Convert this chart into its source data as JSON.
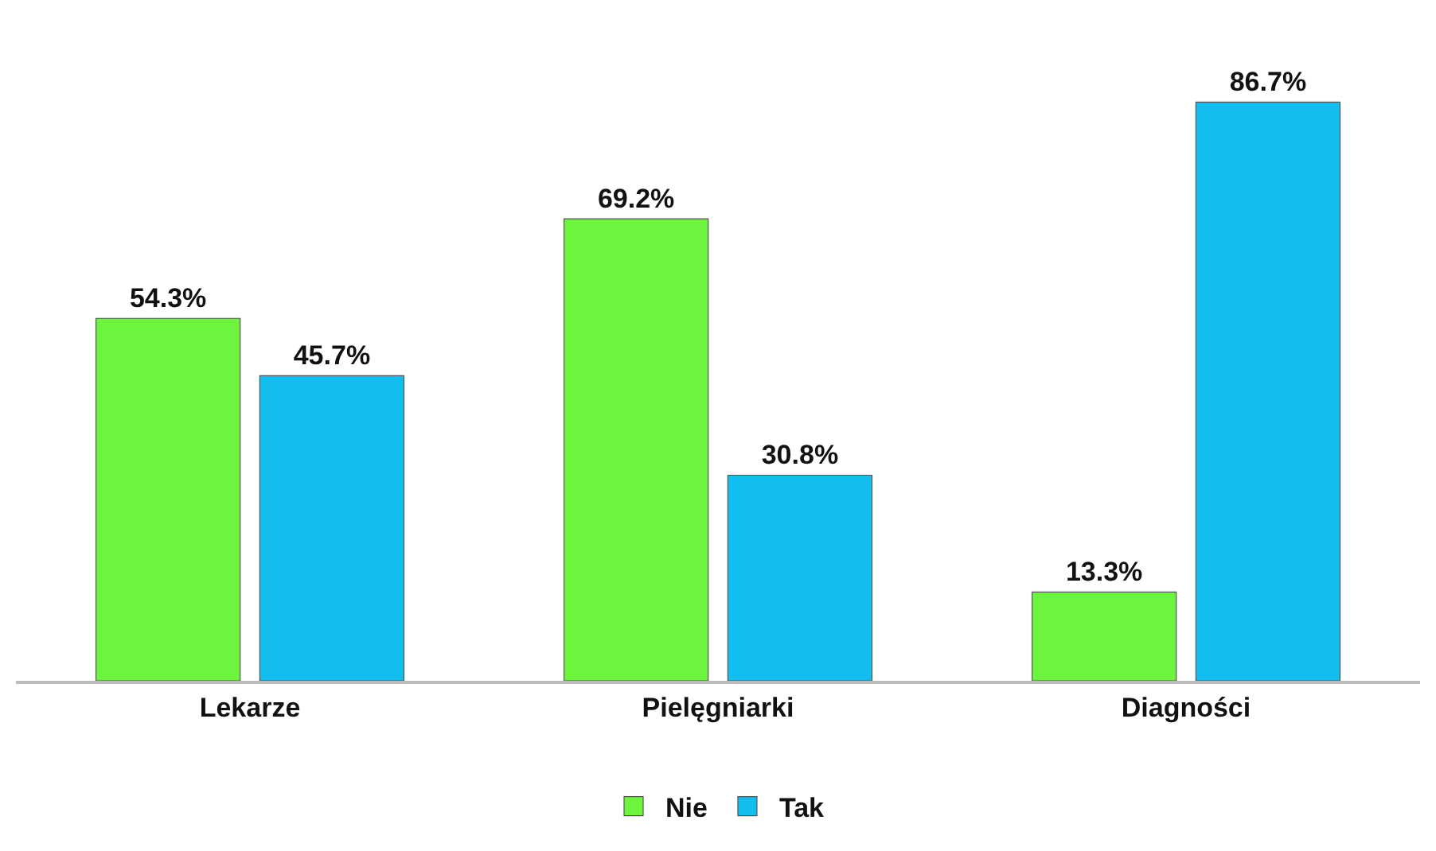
{
  "chart_data": {
    "type": "bar",
    "categories": [
      "Lekarze",
      "Pielęgniarki",
      "Diagności"
    ],
    "series": [
      {
        "name": "Nie",
        "color": "#6cf53c",
        "values": [
          54.3,
          69.2,
          13.3
        ],
        "value_labels": [
          "54.3%",
          "69.2%",
          "13.3%"
        ]
      },
      {
        "name": "Tak",
        "color": "#12bdf0",
        "values": [
          45.7,
          30.8,
          86.7
        ],
        "value_labels": [
          "45.7%",
          "30.8%",
          "86.7%"
        ]
      }
    ],
    "legend": "bottom"
  }
}
